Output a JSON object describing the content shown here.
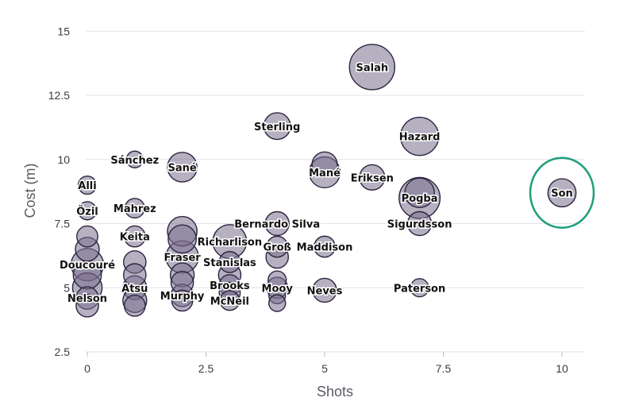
{
  "chart_data": {
    "type": "scatter",
    "title": "",
    "xlabel": "Shots",
    "ylabel": "Cost (m)",
    "xlim": [
      0,
      10.5
    ],
    "ylim": [
      2.5,
      15.5
    ],
    "x_ticks": [
      0,
      2.5,
      5,
      7.5,
      10
    ],
    "x_tick_labels": [
      "0",
      "2.5",
      "5",
      "7.5",
      "10"
    ],
    "y_ticks": [
      2.5,
      5,
      7.5,
      10,
      12.5,
      15
    ],
    "y_tick_labels": [
      "2.5",
      "5",
      "7.5",
      "10",
      "12.5",
      "15"
    ],
    "grid": "horizontal",
    "bubble_color": "#7a6f8e",
    "bubble_edge": "#2d2540",
    "highlight_color": "#1f9e7e",
    "highlight_player": "Son",
    "points": [
      {
        "label": "Salah",
        "x": 6,
        "y": 13.6,
        "size": 2.5
      },
      {
        "label": "Sterling",
        "x": 4,
        "y": 11.3,
        "size": 1.2
      },
      {
        "label": "Hazard",
        "x": 7,
        "y": 10.9,
        "size": 2.0
      },
      {
        "label": "Sánchez",
        "x": 1,
        "y": 10.0,
        "size": 0.5
      },
      {
        "label": "Sané",
        "x": 2,
        "y": 9.7,
        "size": 1.4
      },
      {
        "label": "Mané",
        "x": 5,
        "y": 9.5,
        "size": 1.5
      },
      {
        "label": "Eriksen",
        "x": 6,
        "y": 9.3,
        "size": 1.1
      },
      {
        "label": "Son",
        "x": 10,
        "y": 8.7,
        "size": 1.3
      },
      {
        "label": "Pogba",
        "x": 7,
        "y": 8.5,
        "size": 2.2
      },
      {
        "label": "Alli",
        "x": 0,
        "y": 9.0,
        "size": 0.6
      },
      {
        "label": "Mahrez",
        "x": 1,
        "y": 8.1,
        "size": 0.7
      },
      {
        "label": "Özil",
        "x": 0,
        "y": 8.0,
        "size": 0.6
      },
      {
        "label": "Bernardo Silva",
        "x": 4,
        "y": 7.5,
        "size": 1.0
      },
      {
        "label": "Sigurdsson",
        "x": 7,
        "y": 7.5,
        "size": 1.0
      },
      {
        "label": "Keita",
        "x": 1,
        "y": 7.0,
        "size": 0.8
      },
      {
        "label": "Richarlison",
        "x": 3,
        "y": 6.8,
        "size": 1.7
      },
      {
        "label": "Groß",
        "x": 4,
        "y": 6.6,
        "size": 0.8
      },
      {
        "label": "Maddison",
        "x": 5,
        "y": 6.6,
        "size": 0.8
      },
      {
        "label": "Fraser",
        "x": 2,
        "y": 6.2,
        "size": 1.6
      },
      {
        "label": "Stanislas",
        "x": 3,
        "y": 6.0,
        "size": 0.8
      },
      {
        "label": "Doucouré",
        "x": 0,
        "y": 5.9,
        "size": 1.6
      },
      {
        "label": "Atsu",
        "x": 1,
        "y": 5.0,
        "size": 1.0
      },
      {
        "label": "Brooks",
        "x": 3,
        "y": 5.1,
        "size": 0.8
      },
      {
        "label": "Mooy",
        "x": 4,
        "y": 5.0,
        "size": 0.8
      },
      {
        "label": "Neves",
        "x": 5,
        "y": 4.9,
        "size": 1.0
      },
      {
        "label": "Paterson",
        "x": 7,
        "y": 5.0,
        "size": 0.6
      },
      {
        "label": "Murphy",
        "x": 2,
        "y": 4.7,
        "size": 0.9
      },
      {
        "label": "Nelson",
        "x": 0,
        "y": 4.6,
        "size": 0.9
      },
      {
        "label": "McNeil",
        "x": 3,
        "y": 4.5,
        "size": 0.7
      },
      {
        "label": "",
        "x": 0,
        "y": 7.0,
        "size": 0.8
      },
      {
        "label": "",
        "x": 0,
        "y": 6.5,
        "size": 1.0
      },
      {
        "label": "",
        "x": 0,
        "y": 5.5,
        "size": 1.3
      },
      {
        "label": "",
        "x": 0,
        "y": 5.0,
        "size": 1.4
      },
      {
        "label": "",
        "x": 0,
        "y": 4.3,
        "size": 0.9
      },
      {
        "label": "",
        "x": 1,
        "y": 6.0,
        "size": 0.9
      },
      {
        "label": "",
        "x": 1,
        "y": 5.5,
        "size": 0.9
      },
      {
        "label": "",
        "x": 1,
        "y": 4.5,
        "size": 1.0
      },
      {
        "label": "",
        "x": 1,
        "y": 4.3,
        "size": 0.8
      },
      {
        "label": "",
        "x": 2,
        "y": 7.2,
        "size": 1.4
      },
      {
        "label": "",
        "x": 2,
        "y": 6.9,
        "size": 1.3
      },
      {
        "label": "",
        "x": 2,
        "y": 5.5,
        "size": 1.0
      },
      {
        "label": "",
        "x": 2,
        "y": 5.2,
        "size": 0.9
      },
      {
        "label": "",
        "x": 2,
        "y": 4.5,
        "size": 0.8
      },
      {
        "label": "",
        "x": 3,
        "y": 5.5,
        "size": 0.9
      },
      {
        "label": "",
        "x": 3,
        "y": 4.8,
        "size": 0.8
      },
      {
        "label": "",
        "x": 4,
        "y": 6.2,
        "size": 0.9
      },
      {
        "label": "",
        "x": 4,
        "y": 5.3,
        "size": 0.6
      },
      {
        "label": "",
        "x": 4,
        "y": 4.7,
        "size": 0.5
      },
      {
        "label": "",
        "x": 4,
        "y": 4.4,
        "size": 0.5
      },
      {
        "label": "",
        "x": 5,
        "y": 9.8,
        "size": 1.1
      },
      {
        "label": "",
        "x": 7,
        "y": 8.7,
        "size": 1.4
      }
    ]
  }
}
